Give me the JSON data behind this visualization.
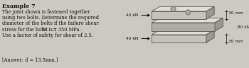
{
  "title": "Example 7",
  "line1": "The joint shown is fastened together",
  "line2": "using two bolts. Determine the required",
  "line3": "diameter of the bolts if the failure shear",
  "line4a": "stress for the bolts is τ",
  "line4b": "fail",
  "line4c": " = 350 MPa.",
  "line5": "Use a factor of safety for shear of 2.5.",
  "answer": "[Answer: d = 13.5mm.]",
  "label_40kN_top": "40 kN",
  "label_40kN_bot": "40 kN",
  "label_80kN": "80 kN",
  "label_30mm_top": "30 mm",
  "label_30mm_bot": "30 mm",
  "bg_color": "#ccc9c2",
  "text_color": "#111111",
  "font_size_title": 5.8,
  "font_size_body": 4.8,
  "font_size_label": 4.2,
  "plate_top_face": "#e2ddd7",
  "plate_front_outer": "#c5c2bb",
  "plate_front_mid": "#b0ada6",
  "plate_right_face": "#9a9990",
  "plate_edge": "#555550"
}
